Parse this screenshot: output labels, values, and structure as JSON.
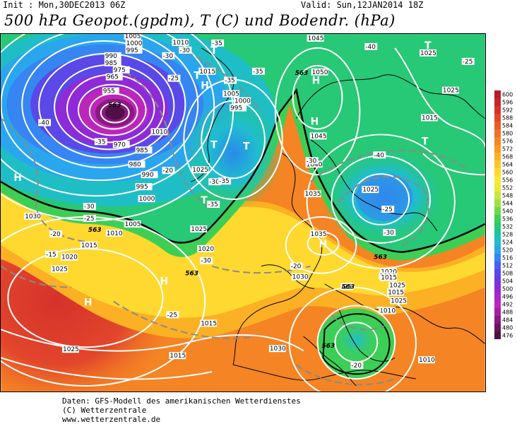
{
  "header": {
    "init": "Init : Mon,30DEC2013 06Z",
    "valid": "Valid: Sun,12JAN2014 18Z",
    "title": "500 hPa Geopot.(gpdm), T (C) und Bodendr. (hPa)"
  },
  "colorbar": {
    "levels": [
      "600",
      "596",
      "592",
      "588",
      "584",
      "580",
      "576",
      "572",
      "568",
      "564",
      "560",
      "556",
      "552",
      "548",
      "544",
      "540",
      "536",
      "532",
      "528",
      "524",
      "520",
      "516",
      "512",
      "508",
      "504",
      "500",
      "496",
      "492",
      "488",
      "484",
      "480",
      "476"
    ],
    "colors": [
      "#b81b2a",
      "#c8252b",
      "#d6322b",
      "#e2462b",
      "#ea5a28",
      "#f06f26",
      "#f58424",
      "#f99923",
      "#fcb024",
      "#ffc62a",
      "#ffd92f",
      "#fde638",
      "#ebea3b",
      "#c9e640",
      "#9ee044",
      "#6ed84a",
      "#3dcf55",
      "#27c876",
      "#1ec3a2",
      "#1fbdd0",
      "#2aa6ee",
      "#3685f2",
      "#4563f0",
      "#5a48e8",
      "#7436e0",
      "#8f2ad8",
      "#a826cc",
      "#bc26bb",
      "#a6209c",
      "#8a1a7d",
      "#6c145f",
      "#500f46"
    ]
  },
  "map_labels": {
    "highs": [
      "H",
      "H",
      "H",
      "H",
      "H",
      "H",
      "H",
      "H",
      "H"
    ],
    "lows": [
      "T",
      "T",
      "T",
      "T",
      "T",
      "T",
      "T",
      "T",
      "T"
    ],
    "geopot": [
      "563",
      "563",
      "563",
      "563",
      "563",
      "563",
      "563",
      "563"
    ],
    "isobars": [
      "1005",
      "1000",
      "995",
      "990",
      "985",
      "980",
      "975",
      "970",
      "965",
      "960",
      "955",
      "1010",
      "1015",
      "1010",
      "1005",
      "1000",
      "995",
      "1045",
      "1050",
      "1045",
      "1040",
      "1035",
      "1035",
      "1030",
      "1025",
      "1020",
      "1015",
      "1010",
      "1025",
      "1025",
      "1030",
      "1025",
      "1020",
      "1015",
      "1010",
      "1005",
      "1000",
      "995",
      "990",
      "985",
      "980",
      "975",
      "970",
      "1030",
      "1020",
      "1015",
      "1025",
      "1020",
      "1025",
      "1015",
      "1025",
      "1010",
      "1010",
      "1015",
      "1020",
      "1025",
      "1030",
      "1025",
      "1015",
      "1020"
    ],
    "temps": [
      "-40",
      "-40",
      "-30",
      "-35",
      "-35",
      "-35",
      "-30",
      "-25",
      "-20",
      "-30",
      "-35",
      "-35",
      "-30",
      "-25",
      "-20",
      "-15",
      "-30",
      "-25",
      "-20",
      "-25",
      "-20",
      "-25",
      "-20",
      "-30",
      "-35",
      "-40",
      "-35",
      "-30",
      "-25",
      "-20",
      "-25",
      "-20"
    ]
  },
  "footer": {
    "line1": "Daten: GFS-Modell des amerikanischen Wetterdienstes",
    "line2": "(C) Wetterzentrale",
    "line3": "www.wetterzentrale.de"
  }
}
